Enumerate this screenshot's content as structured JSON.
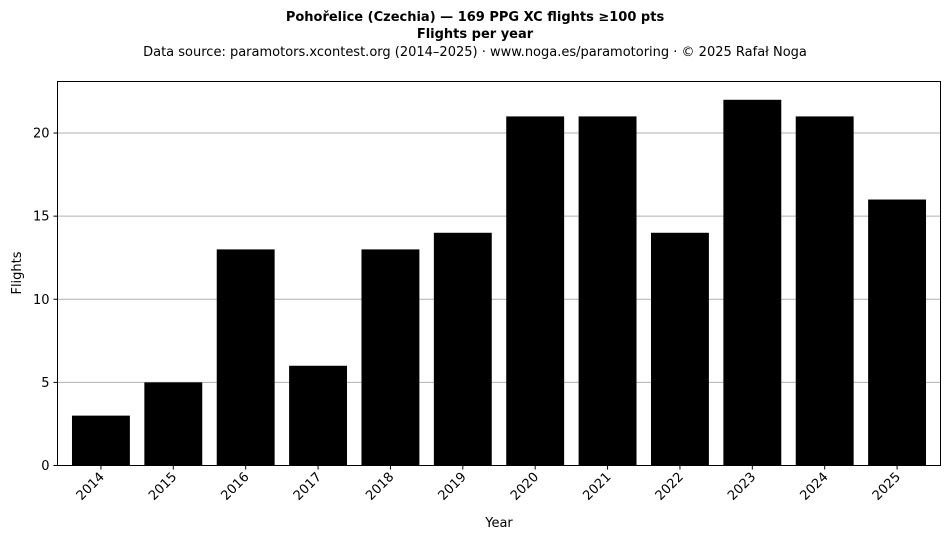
{
  "chart_data": {
    "type": "bar",
    "title": "Pohořelice (Czechia)  —  169 PPG XC flights ≥100 pts",
    "subtitle": "Flights per year",
    "source_note": "Data source: paramotors.xcontest.org (2014–2025)  ·  www.noga.es/paramotoring  ·  © 2025 Rafał Noga",
    "xlabel": "Year",
    "ylabel": "Flights",
    "categories": [
      "2014",
      "2015",
      "2016",
      "2017",
      "2018",
      "2019",
      "2020",
      "2021",
      "2022",
      "2023",
      "2024",
      "2025"
    ],
    "values": [
      3,
      5,
      13,
      6,
      13,
      14,
      21,
      21,
      14,
      22,
      21,
      16
    ],
    "ylim": [
      0,
      23.1
    ],
    "yticks": [
      0,
      5,
      10,
      15,
      20
    ],
    "grid": "y",
    "bar_color": "#000000"
  }
}
